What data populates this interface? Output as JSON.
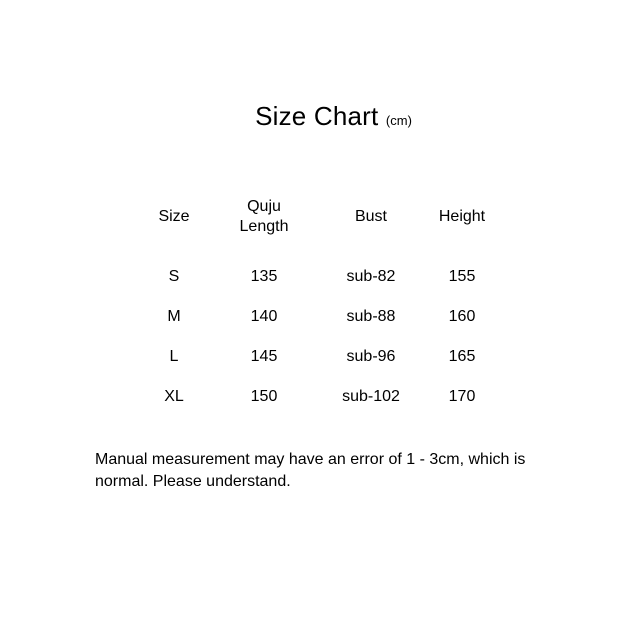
{
  "title": {
    "main": "Size Chart",
    "unit": "(cm)"
  },
  "table": {
    "headers": [
      "Size",
      "Quju\nLength",
      "Bust",
      "Height"
    ],
    "rows": [
      [
        "S",
        "135",
        "sub-82",
        "155"
      ],
      [
        "M",
        "140",
        "sub-88",
        "160"
      ],
      [
        "L",
        "145",
        "sub-96",
        "165"
      ],
      [
        "XL",
        "150",
        "sub-102",
        "170"
      ]
    ]
  },
  "note": "Manual measurement may have an error of 1 - 3cm, which is normal. Please understand.",
  "colors": {
    "text": "#000000",
    "background": "#ffffff"
  }
}
